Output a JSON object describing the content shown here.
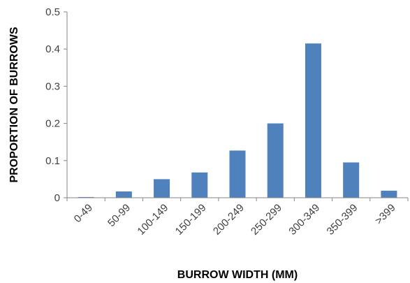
{
  "chart_data": {
    "type": "bar",
    "title": "",
    "xlabel": "BURROW WIDTH (MM)",
    "ylabel": "PROPORTION OF BURROWS",
    "categories": [
      "0-49",
      "50-99",
      "100-149",
      "150-199",
      "200-249",
      "250-299",
      "300-349",
      "350-399",
      ">399"
    ],
    "values": [
      0.002,
      0.017,
      0.05,
      0.068,
      0.127,
      0.2,
      0.415,
      0.095,
      0.019
    ],
    "ylim": [
      0,
      0.5
    ],
    "yticks": [
      "0",
      "0.1",
      "0.2",
      "0.3",
      "0.4",
      "0.5"
    ],
    "grid": false,
    "legend": "none",
    "bar_color": "#4F81BD",
    "axis_color": "#868686"
  }
}
